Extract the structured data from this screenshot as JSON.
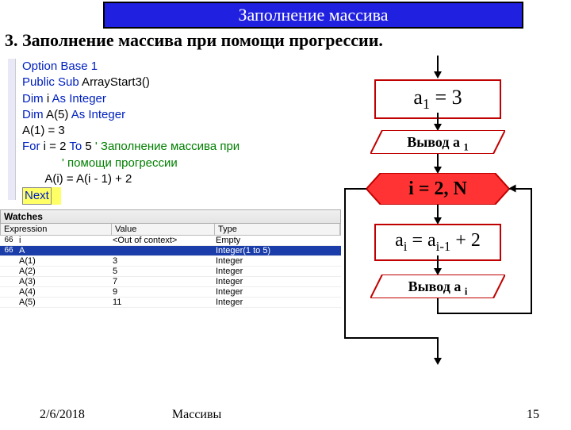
{
  "title": "Заполнение массива",
  "subtitle": "3. Заполнение массива при помощи прогрессии.",
  "code": {
    "l1": "Option Base 1",
    "l2a": "Public Sub",
    "l2b": " ArrayStart3()",
    "l3a": "Dim",
    "l3b": " i ",
    "l3c": "As Integer",
    "l4a": "Dim",
    "l4b": " A(5) ",
    "l4c": "As Integer",
    "l5": "A(1) = 3",
    "l6a": "For",
    "l6b": " i = 2 ",
    "l6c": "To",
    "l6d": " 5 ",
    "l6e": "' Заполнение массива при",
    "l7": "            ' помощи прогрессии",
    "l8": "       A(i) = A(i - 1) + 2",
    "l9": "Next"
  },
  "watches": {
    "title": "Watches",
    "headers": {
      "expr": "Expression",
      "val": "Value",
      "type": "Type"
    },
    "rows": [
      {
        "icon": "66",
        "expr": "i",
        "val": "<Out of context>",
        "type": "Empty",
        "sel": false
      },
      {
        "icon": "66",
        "expr": "A",
        "val": "",
        "type": "Integer(1 to 5)",
        "sel": true
      },
      {
        "icon": "",
        "expr": "A(1)",
        "val": "3",
        "type": "Integer",
        "sel": false,
        "indent": true
      },
      {
        "icon": "",
        "expr": "A(2)",
        "val": "5",
        "type": "Integer",
        "sel": false,
        "indent": true
      },
      {
        "icon": "",
        "expr": "A(3)",
        "val": "7",
        "type": "Integer",
        "sel": false,
        "indent": true
      },
      {
        "icon": "",
        "expr": "A(4)",
        "val": "9",
        "type": "Integer",
        "sel": false,
        "indent": true
      },
      {
        "icon": "",
        "expr": "A(5)",
        "val": "11",
        "type": "Integer",
        "sel": false,
        "indent": true
      }
    ]
  },
  "flow": {
    "box1": "a₁ = 3",
    "para1": "Вывод а ₁",
    "loop": "i = 2, N",
    "box2_html": "aᵢ = aᵢ₋₁ + 2",
    "para2": "Вывод а ᵢ",
    "colors": {
      "border": "#c00000",
      "fill_loop": "#ff3333",
      "line": "#000000"
    }
  },
  "footer": {
    "date": "2/6/2018",
    "topic": "Массивы",
    "page": "15"
  }
}
